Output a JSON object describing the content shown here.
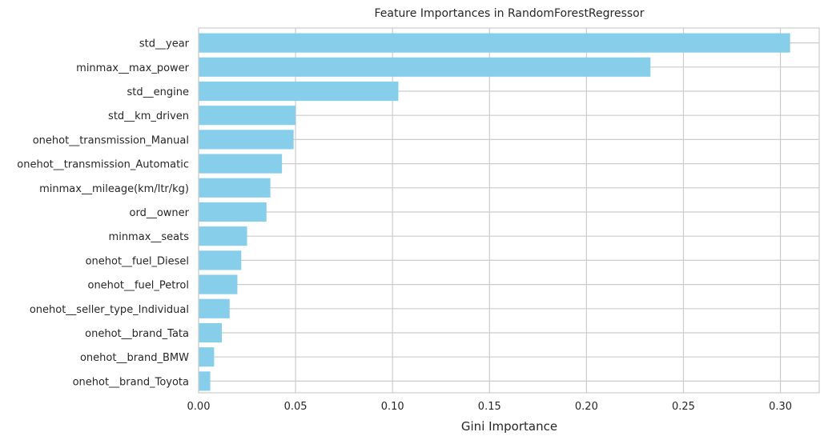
{
  "chart_data": {
    "type": "bar",
    "orientation": "horizontal",
    "title": "Feature Importances in RandomForestRegressor",
    "xlabel": "Gini Importance",
    "ylabel": "",
    "xlim": [
      0,
      0.32
    ],
    "xticks": [
      "0.00",
      "0.05",
      "0.10",
      "0.15",
      "0.20",
      "0.25",
      "0.30"
    ],
    "xtick_values": [
      0,
      0.05,
      0.1,
      0.15,
      0.2,
      0.25,
      0.3
    ],
    "grid": true,
    "bar_color": "#87CEEB",
    "categories": [
      "std__year",
      "minmax__max_power",
      "std__engine",
      "std__km_driven",
      "onehot__transmission_Manual",
      "onehot__transmission_Automatic",
      "minmax__mileage(km/ltr/kg)",
      "ord__owner",
      "minmax__seats",
      "onehot__fuel_Diesel",
      "onehot__fuel_Petrol",
      "onehot__seller_type_Individual",
      "onehot__brand_Tata",
      "onehot__brand_BMW",
      "onehot__brand_Toyota"
    ],
    "values": [
      0.305,
      0.233,
      0.103,
      0.05,
      0.049,
      0.043,
      0.037,
      0.035,
      0.025,
      0.022,
      0.02,
      0.016,
      0.012,
      0.008,
      0.006
    ]
  }
}
